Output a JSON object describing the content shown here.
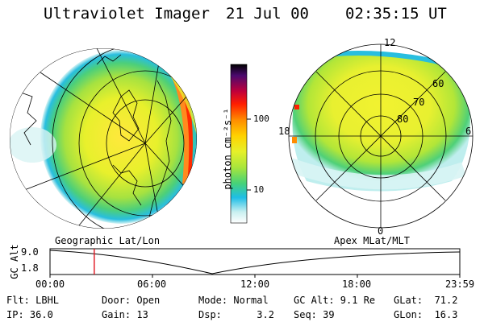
{
  "header": {
    "instrument": "Ultraviolet Imager",
    "date": "21 Jul 00",
    "time": "02:35:15 UT"
  },
  "colorbar": {
    "unit_label": "photon cm⁻²s⁻¹",
    "tick_labels": [
      "100",
      "10"
    ],
    "colors": [
      "#000000",
      "#4b0a6e",
      "#c0003a",
      "#ff1e00",
      "#ff8c00",
      "#ffd200",
      "#e6f02a",
      "#a8e63c",
      "#46d278",
      "#1ebee6",
      "#c8f0f0",
      "#ffffff"
    ]
  },
  "polar_plot": {
    "mlt_labels": [
      "12",
      "18",
      "6",
      "0"
    ],
    "lat_labels": [
      "60",
      "70",
      "80"
    ]
  },
  "map_captions": {
    "left": "Geographic Lat/Lon",
    "right": "Apex MLat/MLT"
  },
  "timeline": {
    "ylabel": "GC Alt",
    "y_ticks": [
      "9.0",
      "1.8"
    ],
    "x_ticks": [
      "00:00",
      "06:00",
      "12:00",
      "18:00",
      "23:59"
    ],
    "current_time_fraction": 0.108
  },
  "info": {
    "row1": {
      "filter": "Flt: LBHL",
      "door": "Door: Open",
      "mode": "Mode: Normal",
      "gc_alt": "GC Alt: 9.1 Re",
      "glat": "GLat:  71.2"
    },
    "row2": {
      "ip": "IP: 36.0",
      "gain": "Gain: 13",
      "dsp": "Dsp:      3.2",
      "seq": "Seq: 39",
      "glon": "GLon:  16.3"
    }
  }
}
